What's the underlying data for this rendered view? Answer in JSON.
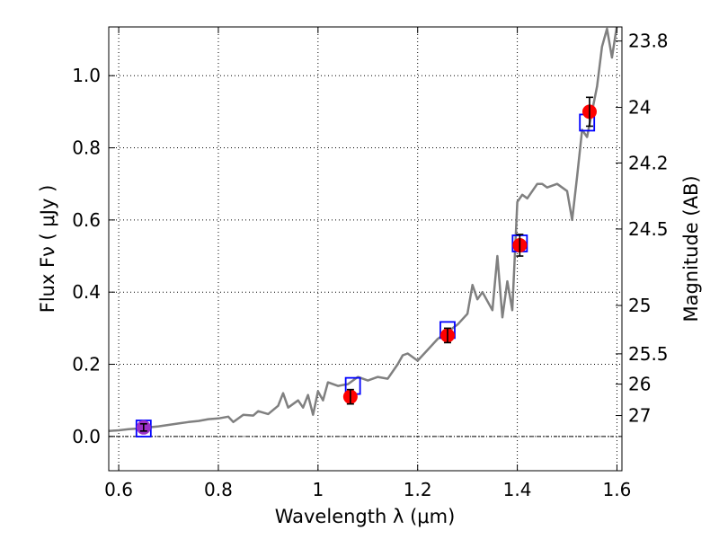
{
  "chart_data": {
    "type": "line",
    "title": "",
    "xlabel": "Wavelength  λ (μm)",
    "ylabel": "Flux  Fν  ( μJy )",
    "y2label": "Magnitude (AB)",
    "xlim": [
      0.58,
      1.61
    ],
    "ylim": [
      -0.095,
      1.135
    ],
    "x_ticks": [
      "0.6",
      "0.8",
      "1",
      "1.2",
      "1.4",
      "1.6"
    ],
    "x_tick_values": [
      0.6,
      0.8,
      1.0,
      1.2,
      1.4,
      1.6
    ],
    "y_ticks": [
      "0.0",
      "0.2",
      "0.4",
      "0.6",
      "0.8",
      "1.0"
    ],
    "y_tick_values": [
      0.0,
      0.2,
      0.4,
      0.6,
      0.8,
      1.0
    ],
    "y2_ticks": [
      {
        "label": "23.8",
        "flux": 1.096
      },
      {
        "label": "24",
        "flux": 0.912
      },
      {
        "label": "24.2",
        "flux": 0.758
      },
      {
        "label": "24.5",
        "flux": 0.575
      },
      {
        "label": "25",
        "flux": 0.363
      },
      {
        "label": "25.5",
        "flux": 0.229
      },
      {
        "label": "26",
        "flux": 0.145
      },
      {
        "label": "27",
        "flux": 0.058
      }
    ],
    "grid": true,
    "zero_line": true,
    "series": [
      {
        "kind": "model-spectrum",
        "color": "#808080",
        "x": [
          0.58,
          0.6,
          0.62,
          0.64,
          0.66,
          0.68,
          0.7,
          0.72,
          0.74,
          0.76,
          0.78,
          0.8,
          0.82,
          0.83,
          0.85,
          0.87,
          0.88,
          0.9,
          0.92,
          0.93,
          0.94,
          0.96,
          0.97,
          0.98,
          0.99,
          1.0,
          1.01,
          1.02,
          1.04,
          1.06,
          1.08,
          1.1,
          1.12,
          1.14,
          1.16,
          1.17,
          1.18,
          1.2,
          1.22,
          1.24,
          1.26,
          1.28,
          1.3,
          1.31,
          1.32,
          1.33,
          1.35,
          1.36,
          1.37,
          1.38,
          1.39,
          1.4,
          1.41,
          1.42,
          1.44,
          1.45,
          1.46,
          1.48,
          1.5,
          1.51,
          1.52,
          1.53,
          1.54,
          1.55,
          1.56,
          1.57,
          1.58,
          1.59,
          1.6
        ],
        "y": [
          0.015,
          0.017,
          0.02,
          0.022,
          0.025,
          0.028,
          0.032,
          0.036,
          0.04,
          0.043,
          0.048,
          0.05,
          0.055,
          0.04,
          0.06,
          0.058,
          0.07,
          0.062,
          0.085,
          0.12,
          0.08,
          0.1,
          0.08,
          0.115,
          0.06,
          0.125,
          0.1,
          0.15,
          0.14,
          0.145,
          0.165,
          0.155,
          0.165,
          0.16,
          0.2,
          0.225,
          0.23,
          0.21,
          0.24,
          0.27,
          0.29,
          0.31,
          0.34,
          0.42,
          0.38,
          0.4,
          0.35,
          0.5,
          0.33,
          0.43,
          0.35,
          0.65,
          0.67,
          0.66,
          0.7,
          0.7,
          0.69,
          0.7,
          0.68,
          0.6,
          0.72,
          0.85,
          0.83,
          0.9,
          0.97,
          1.08,
          1.13,
          1.05,
          1.14
        ]
      },
      {
        "kind": "model-bandpass",
        "color": "#0000ff",
        "marker": "square",
        "x": [
          0.65,
          1.07,
          1.26,
          1.405,
          1.54
        ],
        "y": [
          0.022,
          0.14,
          0.295,
          0.535,
          0.87
        ]
      },
      {
        "kind": "observed-photometry",
        "color": "#ff0000",
        "marker": "circle",
        "x": [
          0.65,
          1.065,
          1.26,
          1.405,
          1.545
        ],
        "y": [
          0.025,
          0.11,
          0.28,
          0.53,
          0.9
        ],
        "yerr": [
          0.01,
          0.02,
          0.02,
          0.03,
          0.04
        ]
      }
    ]
  }
}
